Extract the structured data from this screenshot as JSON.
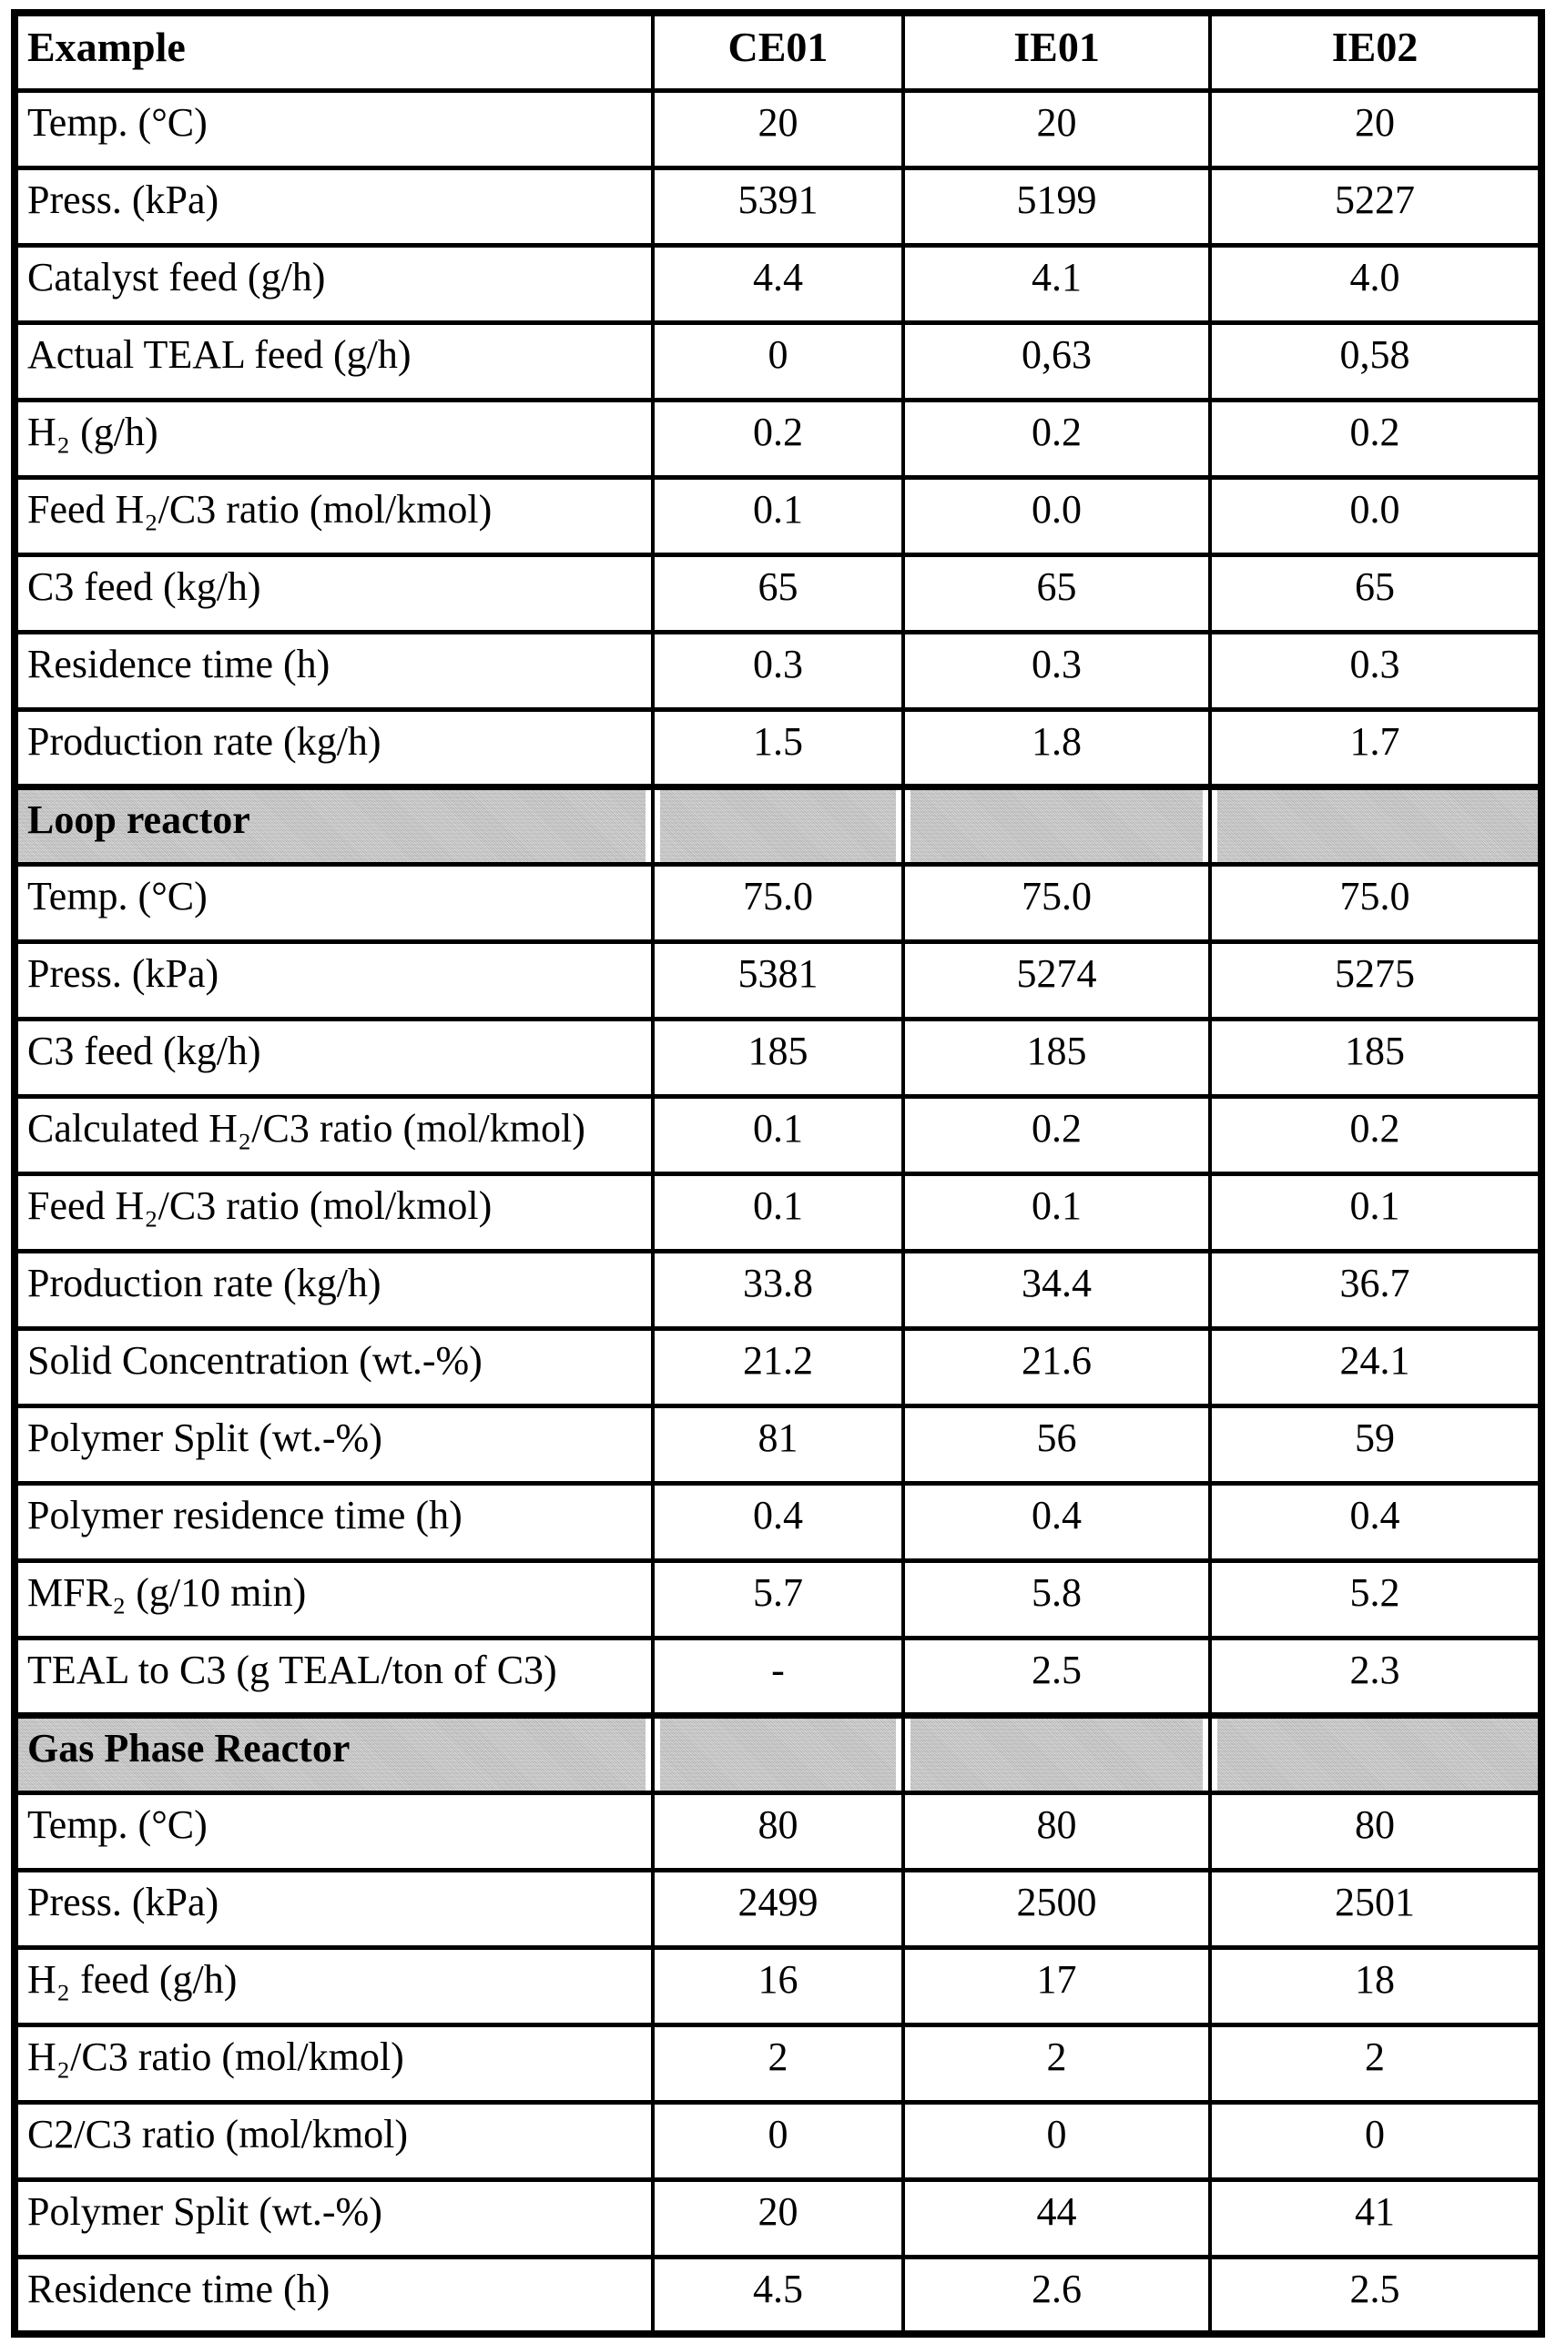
{
  "colors": {
    "background": "#ffffff",
    "border": "#000000",
    "text": "#000000",
    "section_band": "#bdbdbd"
  },
  "table": {
    "columns": [
      "Example",
      "CE01",
      "IE01",
      "IE02"
    ],
    "sections": [
      {
        "title": null,
        "rows": [
          {
            "label": "Temp. (°C)",
            "values": [
              "20",
              "20",
              "20"
            ]
          },
          {
            "label": "Press. (kPa)",
            "values": [
              "5391",
              "5199",
              "5227"
            ]
          },
          {
            "label": "Catalyst feed (g/h)",
            "values": [
              "4.4",
              "4.1",
              "4.0"
            ]
          },
          {
            "label": "Actual TEAL feed (g/h)",
            "values": [
              "0",
              "0,63",
              "0,58"
            ]
          },
          {
            "label": "H₂ (g/h)",
            "values": [
              "0.2",
              "0.2",
              "0.2"
            ]
          },
          {
            "label": "Feed H₂/C3 ratio (mol/kmol)",
            "values": [
              "0.1",
              "0.0",
              "0.0"
            ]
          },
          {
            "label": "C3 feed (kg/h)",
            "values": [
              "65",
              "65",
              "65"
            ]
          },
          {
            "label": "Residence time (h)",
            "values": [
              "0.3",
              "0.3",
              "0.3"
            ]
          },
          {
            "label": "Production rate (kg/h)",
            "values": [
              "1.5",
              "1.8",
              "1.7"
            ]
          }
        ]
      },
      {
        "title": "Loop reactor",
        "rows": [
          {
            "label": "Temp. (°C)",
            "values": [
              "75.0",
              "75.0",
              "75.0"
            ]
          },
          {
            "label": "Press. (kPa)",
            "values": [
              "5381",
              "5274",
              "5275"
            ]
          },
          {
            "label": "C3 feed (kg/h)",
            "values": [
              "185",
              "185",
              "185"
            ]
          },
          {
            "label": "Calculated H₂/C3 ratio (mol/kmol)",
            "values": [
              "0.1",
              "0.2",
              "0.2"
            ]
          },
          {
            "label": "Feed H₂/C3 ratio (mol/kmol)",
            "values": [
              "0.1",
              "0.1",
              "0.1"
            ]
          },
          {
            "label": "Production rate (kg/h)",
            "values": [
              "33.8",
              "34.4",
              "36.7"
            ]
          },
          {
            "label": "Solid Concentration (wt.-%)",
            "values": [
              "21.2",
              "21.6",
              "24.1"
            ]
          },
          {
            "label": "Polymer Split (wt.-%)",
            "values": [
              "81",
              "56",
              "59"
            ]
          },
          {
            "label": "Polymer residence time (h)",
            "values": [
              "0.4",
              "0.4",
              "0.4"
            ]
          },
          {
            "label": "MFR₂ (g/10 min)",
            "values": [
              "5.7",
              "5.8",
              "5.2"
            ]
          },
          {
            "label": "TEAL to C3 (g TEAL/ton of C3)",
            "values": [
              "-",
              "2.5",
              "2.3"
            ]
          }
        ]
      },
      {
        "title": "Gas Phase Reactor",
        "rows": [
          {
            "label": "Temp. (°C)",
            "values": [
              "80",
              "80",
              "80"
            ]
          },
          {
            "label": "Press. (kPa)",
            "values": [
              "2499",
              "2500",
              "2501"
            ]
          },
          {
            "label": "H₂ feed (g/h)",
            "values": [
              "16",
              "17",
              "18"
            ]
          },
          {
            "label": "H₂/C3 ratio (mol/kmol)",
            "values": [
              "2",
              "2",
              "2"
            ]
          },
          {
            "label": "C2/C3 ratio (mol/kmol)",
            "values": [
              "0",
              "0",
              "0"
            ]
          },
          {
            "label": "Polymer Split (wt.-%)",
            "values": [
              "20",
              "44",
              "41"
            ]
          },
          {
            "label": "Residence time (h)",
            "values": [
              "4.5",
              "2.6",
              "2.5"
            ]
          }
        ]
      }
    ]
  }
}
